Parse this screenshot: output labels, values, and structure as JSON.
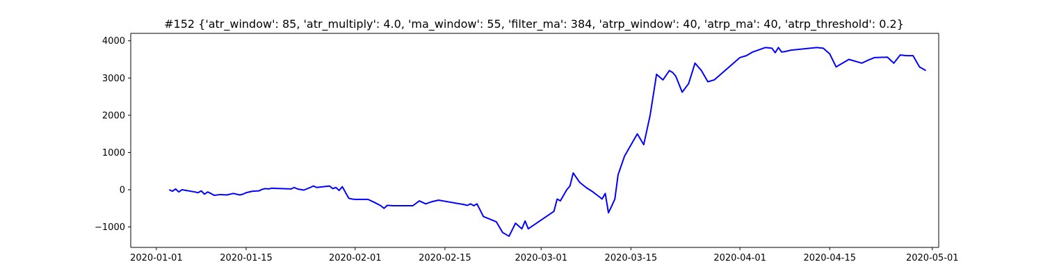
{
  "chart_data": {
    "type": "line",
    "title": "#152 {'atr_window': 85, 'atr_multiply': 4.0, 'ma_window': 55, 'filter_ma': 384, 'atrp_window': 40, 'atrp_ma': 40, 'atrp_threshold': 0.2}",
    "xlabel": "",
    "ylabel": "",
    "xlim": [
      "2019-12-28",
      "2020-05-02"
    ],
    "ylim": [
      -1550,
      4200
    ],
    "x_ticks": [
      "2020-01-01",
      "2020-01-15",
      "2020-02-01",
      "2020-02-15",
      "2020-03-01",
      "2020-03-15",
      "2020-04-01",
      "2020-04-15",
      "2020-05-01"
    ],
    "y_ticks": [
      -1000,
      0,
      1000,
      2000,
      3000,
      4000
    ],
    "y_tick_labels": [
      "−1000",
      "0",
      "1000",
      "2000",
      "3000",
      "4000"
    ],
    "grid": false,
    "legend": "none",
    "series": [
      {
        "color": "#0000ff",
        "x": [
          "2020-01-03",
          "2020-01-03 12:00",
          "2020-01-04",
          "2020-01-04 12:00",
          "2020-01-05",
          "2020-01-07",
          "2020-01-07 12:00",
          "2020-01-08",
          "2020-01-08 12:00",
          "2020-01-09",
          "2020-01-09 12:00",
          "2020-01-10",
          "2020-01-11",
          "2020-01-12",
          "2020-01-13",
          "2020-01-14",
          "2020-01-14 12:00",
          "2020-01-15",
          "2020-01-16",
          "2020-01-17",
          "2020-01-17 12:00",
          "2020-01-18",
          "2020-01-18 12:00",
          "2020-01-19",
          "2020-01-22",
          "2020-01-22 12:00",
          "2020-01-23",
          "2020-01-24",
          "2020-01-25",
          "2020-01-25 12:00",
          "2020-01-26",
          "2020-01-28",
          "2020-01-28 12:00",
          "2020-01-29",
          "2020-01-29 12:00",
          "2020-01-30",
          "2020-01-31",
          "2020-01-31 12:00",
          "2020-02-01",
          "2020-02-03",
          "2020-02-04",
          "2020-02-05",
          "2020-02-05 12:00",
          "2020-02-06",
          "2020-02-07",
          "2020-02-10",
          "2020-02-11",
          "2020-02-12",
          "2020-02-13",
          "2020-02-14",
          "2020-02-18",
          "2020-02-18 12:00",
          "2020-02-19",
          "2020-02-19 12:00",
          "2020-02-20",
          "2020-02-21",
          "2020-02-23",
          "2020-02-24",
          "2020-02-25",
          "2020-02-26",
          "2020-02-27",
          "2020-02-27 12:00",
          "2020-02-28",
          "2020-03-03",
          "2020-03-03 12:00",
          "2020-03-04",
          "2020-03-05",
          "2020-03-05 12:00",
          "2020-03-06",
          "2020-03-07",
          "2020-03-08",
          "2020-03-09",
          "2020-03-10",
          "2020-03-10 12:00",
          "2020-03-11",
          "2020-03-11 12:00",
          "2020-03-12",
          "2020-03-12 12:00",
          "2020-03-13",
          "2020-03-14",
          "2020-03-16",
          "2020-03-17",
          "2020-03-18",
          "2020-03-19",
          "2020-03-20",
          "2020-03-21",
          "2020-03-21 12:00",
          "2020-03-22",
          "2020-03-23",
          "2020-03-24",
          "2020-03-25",
          "2020-03-26",
          "2020-03-26 12:00",
          "2020-03-27",
          "2020-03-28",
          "2020-03-31",
          "2020-04-01",
          "2020-04-02",
          "2020-04-03",
          "2020-04-05",
          "2020-04-06",
          "2020-04-06 12:00",
          "2020-04-07",
          "2020-04-07 12:00",
          "2020-04-08",
          "2020-04-09",
          "2020-04-13",
          "2020-04-14",
          "2020-04-15",
          "2020-04-16",
          "2020-04-17",
          "2020-04-18",
          "2020-04-20",
          "2020-04-21",
          "2020-04-22",
          "2020-04-24",
          "2020-04-25",
          "2020-04-26",
          "2020-04-27",
          "2020-04-28",
          "2020-04-29",
          "2020-04-30"
        ],
        "y": [
          0,
          -40,
          20,
          -60,
          0,
          -60,
          -80,
          -30,
          -120,
          -60,
          -100,
          -150,
          -130,
          -140,
          -100,
          -140,
          -120,
          -80,
          -40,
          -30,
          10,
          30,
          20,
          40,
          20,
          60,
          20,
          -10,
          60,
          100,
          60,
          100,
          30,
          60,
          -20,
          80,
          -230,
          -250,
          -260,
          -260,
          -340,
          -430,
          -500,
          -420,
          -430,
          -430,
          -300,
          -380,
          -320,
          -280,
          -400,
          -420,
          -380,
          -430,
          -380,
          -720,
          -860,
          -1150,
          -1250,
          -900,
          -1050,
          -840,
          -1050,
          -580,
          -250,
          -300,
          0,
          100,
          450,
          200,
          60,
          -50,
          -180,
          -250,
          -100,
          -620,
          -440,
          -250,
          400,
          900,
          1500,
          1210,
          2000,
          3100,
          2950,
          3200,
          3150,
          3050,
          2620,
          2850,
          3400,
          3200,
          3050,
          2900,
          2950,
          3400,
          3550,
          3600,
          3700,
          3820,
          3800,
          3680,
          3820,
          3700,
          3710,
          3750,
          3820,
          3800,
          3650,
          3300,
          3400,
          3500,
          3400,
          3480,
          3550,
          3560,
          3400,
          3620,
          3600,
          3600,
          3300,
          3200
        ]
      }
    ]
  }
}
